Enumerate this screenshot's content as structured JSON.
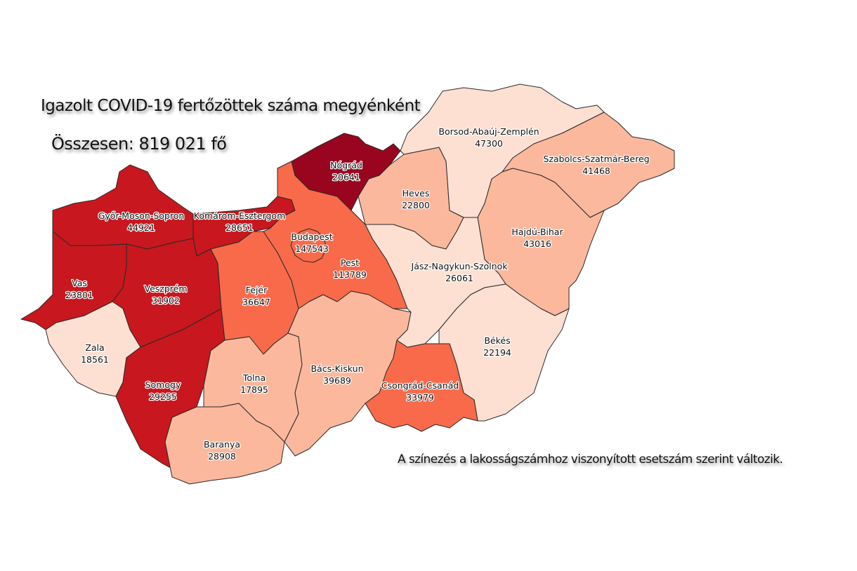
{
  "title": "Igazolt COVID-19 fertőzöttek száma megyénként",
  "total": "Összesen: 819 021 fő",
  "note": "A színezés a lakosságszámhoz viszonyított esetszám szerint változik.",
  "color_scale": {
    "very_high": "#99051f",
    "high": "#c8171e",
    "medium": "#f86a4a",
    "low": "#fbb89c",
    "very_low": "#fde0d2"
  },
  "counties": [
    {
      "id": "gyms",
      "name": "Győr-Moson-Sopron",
      "value": "44921",
      "level": "high"
    },
    {
      "id": "ke",
      "name": "Komárom-Esztergom",
      "value": "28651",
      "level": "high"
    },
    {
      "id": "vas",
      "name": "Vas",
      "value": "23801",
      "level": "high"
    },
    {
      "id": "vesz",
      "name": "Veszprém",
      "value": "31902",
      "level": "high"
    },
    {
      "id": "zala",
      "name": "Zala",
      "value": "18561",
      "level": "very_low"
    },
    {
      "id": "somogy",
      "name": "Somogy",
      "value": "29255",
      "level": "high"
    },
    {
      "id": "fejer",
      "name": "Fejér",
      "value": "36647",
      "level": "medium"
    },
    {
      "id": "tolna",
      "name": "Tolna",
      "value": "17895",
      "level": "low"
    },
    {
      "id": "baranya",
      "name": "Baranya",
      "value": "28908",
      "level": "low"
    },
    {
      "id": "bk",
      "name": "Bács-Kiskun",
      "value": "39689",
      "level": "low"
    },
    {
      "id": "pest",
      "name": "Pest",
      "value": "113789",
      "level": "medium"
    },
    {
      "id": "bp",
      "name": "Budapest",
      "value": "147543",
      "level": "medium"
    },
    {
      "id": "nograd",
      "name": "Nógrád",
      "value": "20641",
      "level": "very_high"
    },
    {
      "id": "heves",
      "name": "Heves",
      "value": "22800",
      "level": "low"
    },
    {
      "id": "baz",
      "name": "Borsod-Abaúj-Zemplén",
      "value": "47300",
      "level": "very_low"
    },
    {
      "id": "szszb",
      "name": "Szabolcs-Szatmár-Bereg",
      "value": "41468",
      "level": "low"
    },
    {
      "id": "hb",
      "name": "Hajdú-Bihar",
      "value": "43016",
      "level": "low"
    },
    {
      "id": "jnsz",
      "name": "Jász-Nagykun-Szolnok",
      "value": "26061",
      "level": "very_low"
    },
    {
      "id": "bekes",
      "name": "Békés",
      "value": "22194",
      "level": "very_low"
    },
    {
      "id": "csongrad",
      "name": "Csongrád-Csanád",
      "value": "33979",
      "level": "medium"
    }
  ]
}
